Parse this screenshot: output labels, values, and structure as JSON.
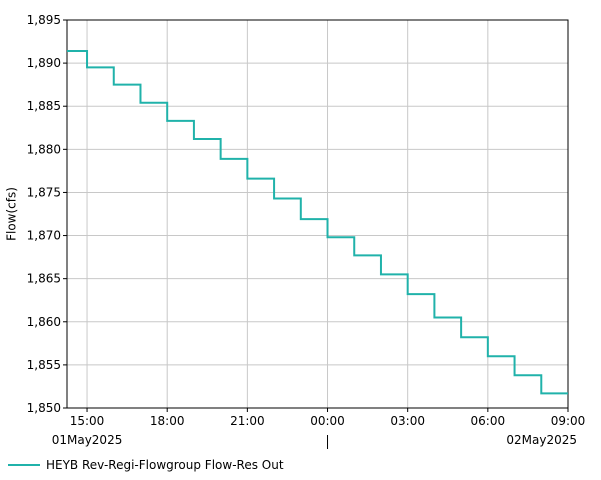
{
  "chart_data": {
    "type": "line",
    "step": true,
    "title": "",
    "xlabel": "",
    "ylabel": "Flow(cfs)",
    "ylim": [
      1850,
      1895
    ],
    "yticks": [
      "1,850",
      "1,855",
      "1,860",
      "1,865",
      "1,870",
      "1,875",
      "1,880",
      "1,885",
      "1,890",
      "1,895"
    ],
    "xlim": [
      "01May2025 14:15",
      "02May2025 09:00"
    ],
    "xticks": [
      {
        "time": "01May2025 15:00",
        "label": "15:00"
      },
      {
        "time": "01May2025 18:00",
        "label": "18:00"
      },
      {
        "time": "01May2025 21:00",
        "label": "21:00"
      },
      {
        "time": "02May2025 00:00",
        "label": "00:00"
      },
      {
        "time": "02May2025 03:00",
        "label": "03:00"
      },
      {
        "time": "02May2025 06:00",
        "label": "06:00"
      },
      {
        "time": "02May2025 09:00",
        "label": "09:00"
      }
    ],
    "date_labels": [
      {
        "time": "01May2025 15:00",
        "label": "01May2025"
      },
      {
        "time": "02May2025 09:00",
        "label": "02May2025"
      }
    ],
    "day_divider": "02May2025 00:00",
    "grid": true,
    "legend_position": "bottom-left",
    "series": [
      {
        "name": "HEYB Rev-Regi-Flowgroup Flow-Res Out",
        "color": "#20b2aa",
        "x": [
          "01May2025 14:15",
          "01May2025 15:00",
          "01May2025 16:00",
          "01May2025 17:00",
          "01May2025 18:00",
          "01May2025 19:00",
          "01May2025 20:00",
          "01May2025 21:00",
          "01May2025 22:00",
          "01May2025 23:00",
          "02May2025 00:00",
          "02May2025 01:00",
          "02May2025 02:00",
          "02May2025 03:00",
          "02May2025 04:00",
          "02May2025 05:00",
          "02May2025 06:00",
          "02May2025 07:00",
          "02May2025 08:00",
          "02May2025 09:00"
        ],
        "values": [
          1891.4,
          1889.5,
          1887.5,
          1885.4,
          1883.3,
          1881.2,
          1878.9,
          1876.6,
          1874.3,
          1871.9,
          1869.8,
          1867.7,
          1865.5,
          1863.2,
          1860.5,
          1858.2,
          1856.0,
          1853.8,
          1851.7,
          1851.7
        ]
      }
    ]
  }
}
